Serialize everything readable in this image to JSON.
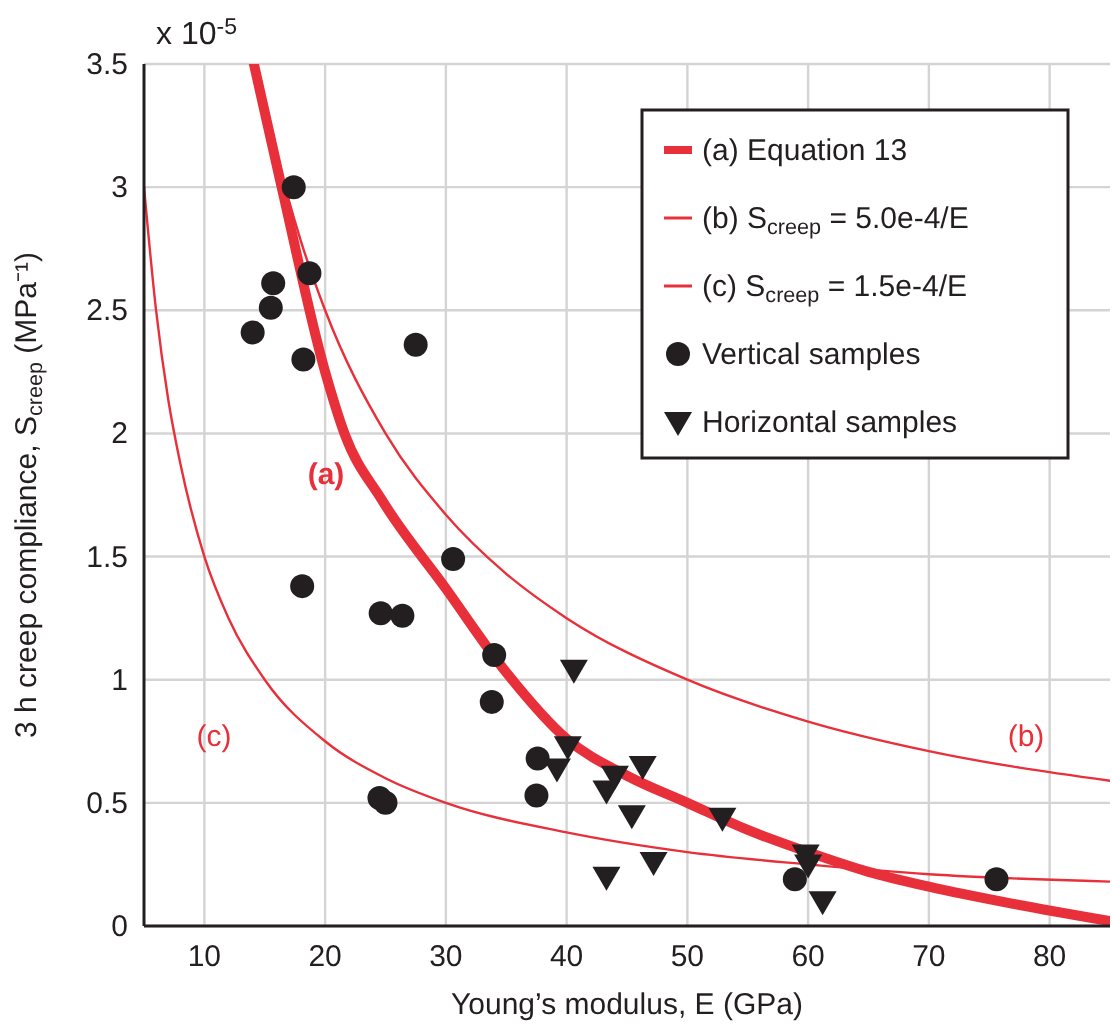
{
  "chart_data": {
    "type": "line",
    "xlabel": "Young’s modulus, E (GPa)",
    "ylabel": "3 h creep compliance, S$_{creep}$ (MPa⁻¹)",
    "xlim": [
      5,
      85
    ],
    "ylim": [
      0,
      3.5
    ],
    "xticks": [
      10,
      20,
      30,
      40,
      50,
      60,
      70,
      80
    ],
    "yticks": [
      0,
      0.5,
      1,
      1.5,
      2,
      2.5,
      3,
      3.5
    ],
    "grid": true,
    "legend": "top right",
    "annotations": [
      "x 10$^{-5}$",
      "(a)",
      "(b)",
      "(c)"
    ],
    "series": [
      {
        "name": "(a) Equation 13",
        "color": "#e8303a",
        "marker": "none",
        "x": [
          14.1,
          16.4,
          20,
          21.6,
          24.7,
          30,
          35,
          40,
          45,
          50,
          55,
          60,
          65,
          70,
          77,
          85
        ],
        "values": [
          3.5,
          3.0,
          2.25,
          2.0,
          1.73,
          1.37,
          1.03,
          0.76,
          0.61,
          0.5,
          0.39,
          0.3,
          0.22,
          0.16,
          0.09,
          0.02
        ]
      },
      {
        "name": "(b) S$_{creep}$ = 5.0e-4/E",
        "color": "#e8303a",
        "marker": "none",
        "x": [
          14.3,
          16,
          18,
          20,
          25,
          30,
          35,
          40,
          50,
          60,
          70,
          85
        ],
        "values": [
          3.5,
          3.13,
          2.78,
          2.5,
          2.0,
          1.67,
          1.43,
          1.25,
          1.0,
          0.83,
          0.71,
          0.59
        ]
      },
      {
        "name": "(c) S$_{creep}$ = 1.5e-4/E",
        "color": "#e8303a",
        "marker": "none",
        "x": [
          5,
          6,
          7,
          8,
          10,
          12,
          15,
          20,
          25,
          30,
          40,
          50,
          60,
          70,
          85
        ],
        "values": [
          3.0,
          2.5,
          2.14,
          1.88,
          1.5,
          1.25,
          1.0,
          0.75,
          0.6,
          0.5,
          0.38,
          0.3,
          0.25,
          0.21,
          0.18
        ]
      },
      {
        "name": "Vertical samples",
        "type": "scatter",
        "color": "#231f20",
        "marker": "circle",
        "x": [
          17.4,
          18.7,
          15.7,
          15.5,
          14.0,
          18.2,
          27.5,
          18.1,
          24.6,
          26.4,
          24.5,
          25.0,
          30.6,
          34.0,
          33.8,
          37.6,
          37.5,
          58.9,
          75.6
        ],
        "values": [
          3.0,
          2.65,
          2.61,
          2.51,
          2.41,
          2.3,
          2.36,
          1.38,
          1.27,
          1.26,
          0.52,
          0.5,
          1.49,
          1.1,
          0.91,
          0.68,
          0.53,
          0.19,
          0.19
        ]
      },
      {
        "name": "Horizontal samples",
        "type": "scatter",
        "color": "#231f20",
        "marker": "triangle",
        "x": [
          40.6,
          40.1,
          39.2,
          44.0,
          43.3,
          46.3,
          45.4,
          52.9,
          43.3,
          47.2,
          59.8,
          60.0,
          61.2
        ],
        "values": [
          1.04,
          0.73,
          0.64,
          0.61,
          0.55,
          0.65,
          0.45,
          0.44,
          0.2,
          0.26,
          0.29,
          0.25,
          0.1
        ]
      }
    ]
  }
}
